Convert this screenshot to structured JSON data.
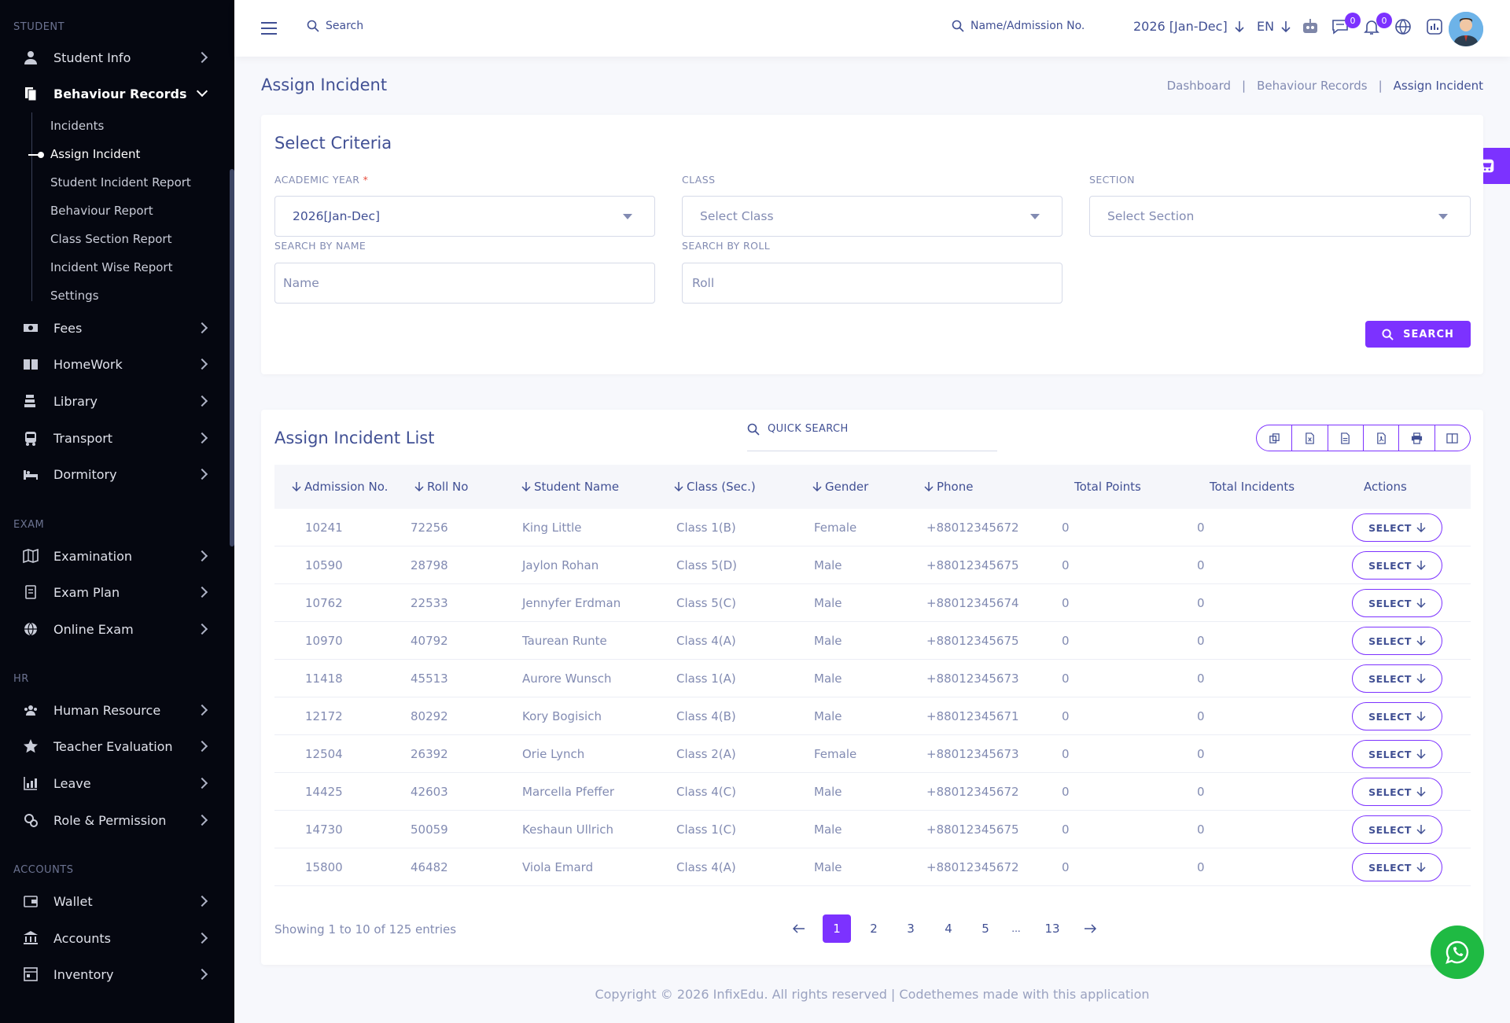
{
  "sidebar": {
    "sections": {
      "student": "STUDENT",
      "exam": "EXAM",
      "hr": "HR",
      "accounts": "ACCOUNTS"
    },
    "items": {
      "student_info": "Student Info",
      "behaviour_records": "Behaviour Records",
      "fees": "Fees",
      "homework": "HomeWork",
      "library": "Library",
      "transport": "Transport",
      "dormitory": "Dormitory",
      "examination": "Examination",
      "exam_plan": "Exam Plan",
      "online_exam": "Online Exam",
      "human_resource": "Human Resource",
      "teacher_evaluation": "Teacher Evaluation",
      "leave": "Leave",
      "role_permission": "Role & Permission",
      "wallet": "Wallet",
      "accounts": "Accounts",
      "inventory": "Inventory"
    },
    "sub_items": {
      "incidents": "Incidents",
      "assign_incident": "Assign Incident",
      "student_incident_report": "Student Incident Report",
      "behaviour_report": "Behaviour Report",
      "class_section_report": "Class Section Report",
      "incident_wise_report": "Incident Wise Report",
      "settings": "Settings"
    }
  },
  "header": {
    "search": "Search",
    "name_search": "Name/Admission No.",
    "year": "2026 [Jan-Dec]",
    "lang": "EN",
    "chat_badge": "0",
    "notif_badge": "0"
  },
  "page": {
    "title": "Assign Incident",
    "breadcrumb": {
      "b1": "Dashboard",
      "b2": "Behaviour Records",
      "b3": "Assign Incident",
      "sep": "|"
    }
  },
  "criteria": {
    "title": "Select Criteria",
    "academic_year_label": "ACADEMIC YEAR",
    "required": "*",
    "academic_year_value": "2026[Jan-Dec]",
    "class_label": "CLASS",
    "class_placeholder": "Select Class",
    "section_label": "SECTION",
    "section_placeholder": "Select Section",
    "name_label": "SEARCH BY NAME",
    "name_placeholder": "Name",
    "roll_label": "SEARCH BY ROLL",
    "roll_placeholder": "Roll",
    "search_button": "SEARCH"
  },
  "list": {
    "title": "Assign Incident List",
    "quick_search": "QUICK SEARCH",
    "columns": {
      "admission": "Admission No.",
      "roll": "Roll No",
      "name": "Student Name",
      "class": "Class (Sec.)",
      "gender": "Gender",
      "phone": "Phone",
      "points": "Total Points",
      "incidents": "Total Incidents",
      "actions": "Actions"
    },
    "select_label": "SELECT",
    "rows": [
      {
        "adm": "10241",
        "roll": "72256",
        "name": "King Little",
        "cls": "Class 1(B)",
        "gender": "Female",
        "phone": "+88012345672",
        "points": "0",
        "incidents": "0"
      },
      {
        "adm": "10590",
        "roll": "28798",
        "name": "Jaylon Rohan",
        "cls": "Class 5(D)",
        "gender": "Male",
        "phone": "+88012345675",
        "points": "0",
        "incidents": "0"
      },
      {
        "adm": "10762",
        "roll": "22533",
        "name": "Jennyfer Erdman",
        "cls": "Class 5(C)",
        "gender": "Male",
        "phone": "+88012345674",
        "points": "0",
        "incidents": "0"
      },
      {
        "adm": "10970",
        "roll": "40792",
        "name": "Taurean Runte",
        "cls": "Class 4(A)",
        "gender": "Male",
        "phone": "+88012345675",
        "points": "0",
        "incidents": "0"
      },
      {
        "adm": "11418",
        "roll": "45513",
        "name": "Aurore Wunsch",
        "cls": "Class 1(A)",
        "gender": "Male",
        "phone": "+88012345673",
        "points": "0",
        "incidents": "0"
      },
      {
        "adm": "12172",
        "roll": "80292",
        "name": "Kory Bogisich",
        "cls": "Class 4(B)",
        "gender": "Male",
        "phone": "+88012345671",
        "points": "0",
        "incidents": "0"
      },
      {
        "adm": "12504",
        "roll": "26392",
        "name": "Orie Lynch",
        "cls": "Class 2(A)",
        "gender": "Female",
        "phone": "+88012345673",
        "points": "0",
        "incidents": "0"
      },
      {
        "adm": "14425",
        "roll": "42603",
        "name": "Marcella Pfeffer",
        "cls": "Class 4(C)",
        "gender": "Male",
        "phone": "+88012345672",
        "points": "0",
        "incidents": "0"
      },
      {
        "adm": "14730",
        "roll": "50059",
        "name": "Keshaun Ullrich",
        "cls": "Class 1(C)",
        "gender": "Male",
        "phone": "+88012345675",
        "points": "0",
        "incidents": "0"
      },
      {
        "adm": "15800",
        "roll": "46482",
        "name": "Viola Emard",
        "cls": "Class 4(A)",
        "gender": "Male",
        "phone": "+88012345672",
        "points": "0",
        "incidents": "0"
      }
    ],
    "showing": "Showing 1 to 10 of 125 entries",
    "pages": {
      "p1": "1",
      "p2": "2",
      "p3": "3",
      "p4": "4",
      "p5": "5",
      "dots": "...",
      "last": "13"
    }
  },
  "footer": "Copyright © 2026 InfixEdu. All rights reserved | Codethemes made with this application",
  "colors": {
    "accent": "#7c32ff",
    "sidebar": "#050710",
    "text": "#415094",
    "whatsapp": "#1fba43"
  }
}
